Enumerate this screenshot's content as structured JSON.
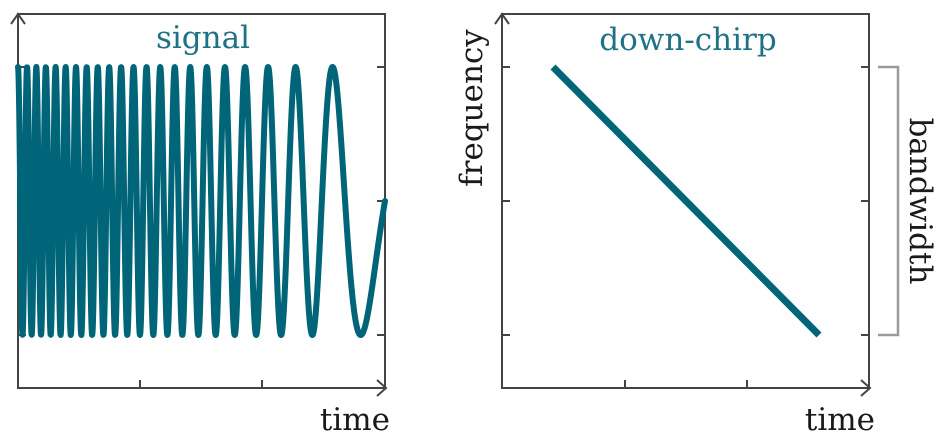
{
  "colors": {
    "curve": "#006578",
    "title": "#1f7285",
    "frame": "#444444",
    "bracket": "#9a9a9a"
  },
  "left_panel": {
    "title": "signal",
    "xlabel": "time"
  },
  "right_panel": {
    "title": "down-chirp",
    "xlabel": "time",
    "ylabel": "frequency",
    "bracket_label": "bandwidth"
  }
}
